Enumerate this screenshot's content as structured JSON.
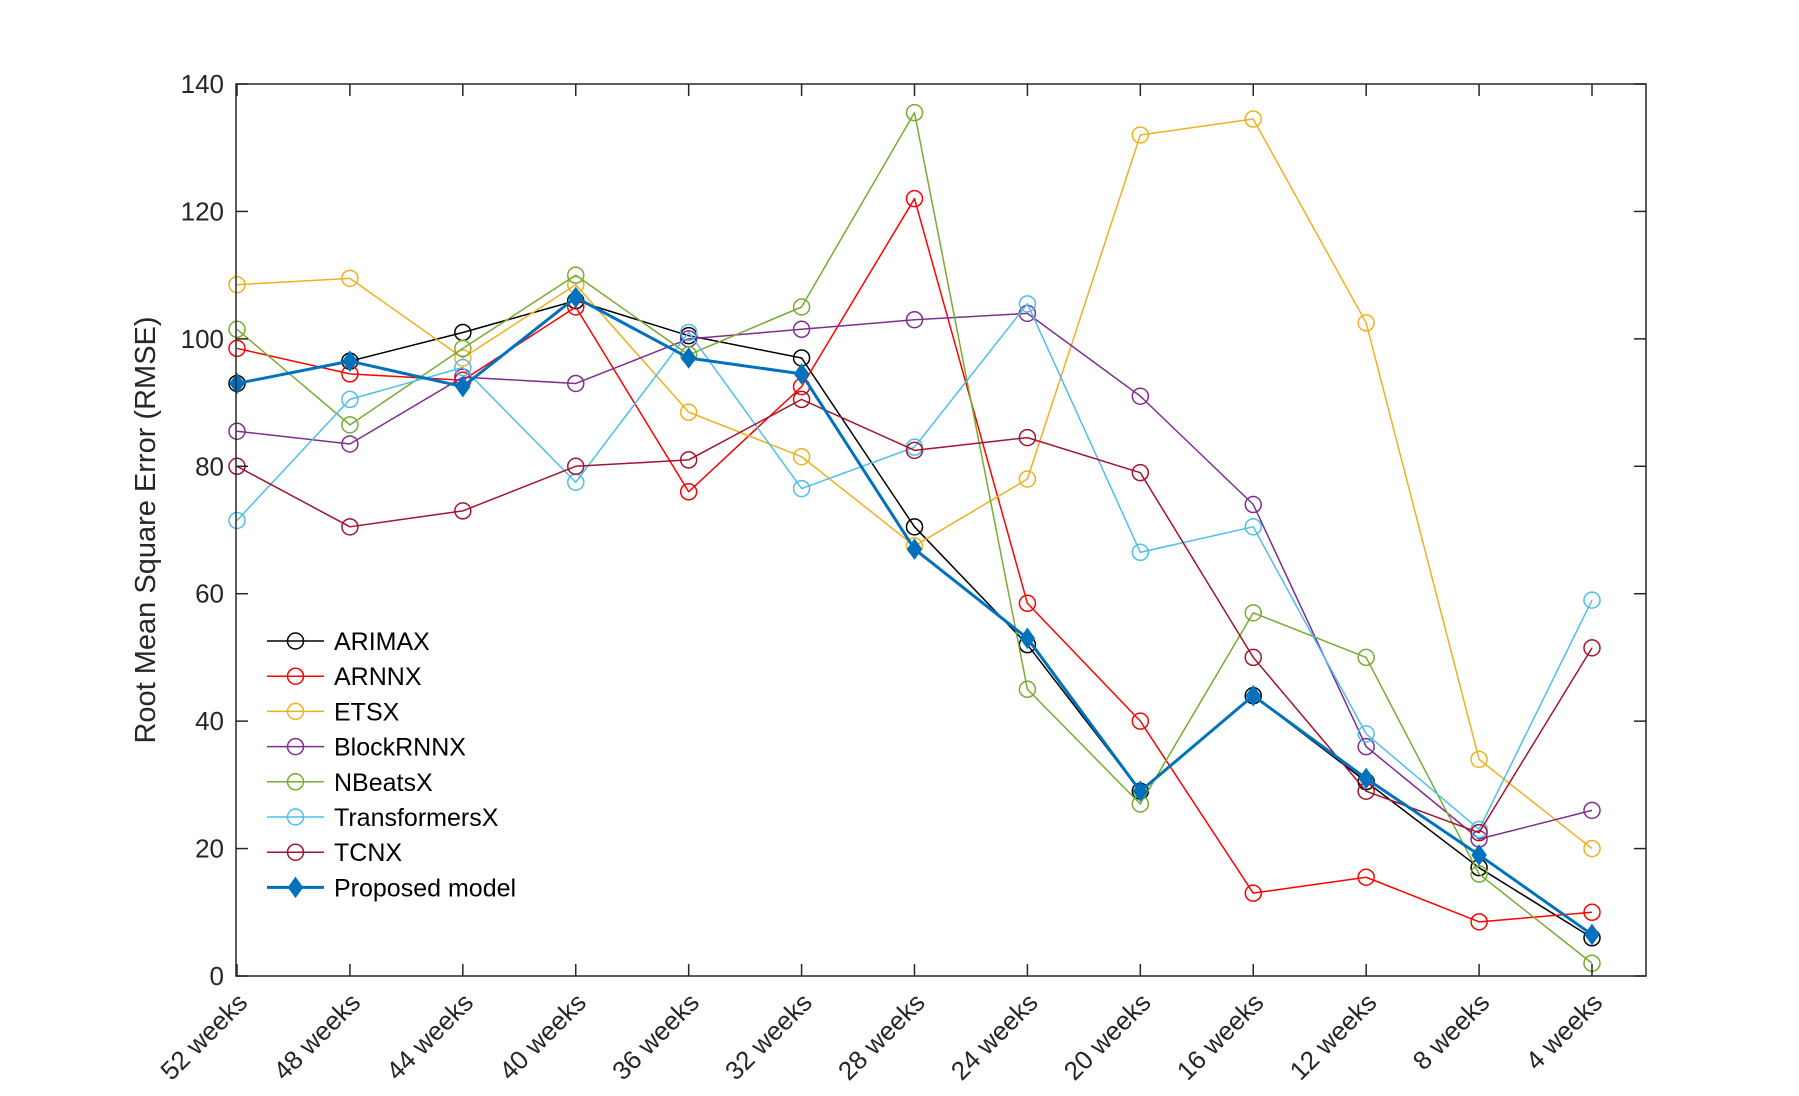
{
  "chart_data": {
    "type": "line",
    "title": "",
    "xlabel": "",
    "ylabel": "Root Mean Square Error (RMSE)",
    "ylim": [
      0,
      140
    ],
    "yticks": [
      0,
      20,
      40,
      60,
      80,
      100,
      120,
      140
    ],
    "categories": [
      "52 weeks",
      "48 weeks",
      "44 weeks",
      "40 weeks",
      "36 weeks",
      "32 weeks",
      "28 weeks",
      "24 weeks",
      "20 weeks",
      "16 weeks",
      "12 weeks",
      "8 weeks",
      "4 weeks"
    ],
    "grid": false,
    "legend_position": "bottom-left",
    "series": [
      {
        "name": "ARIMAX",
        "color": "#000000",
        "marker": "circle",
        "values": [
          93,
          96.5,
          101,
          106,
          100.5,
          97,
          70.5,
          52,
          29,
          44,
          30.5,
          17,
          6
        ]
      },
      {
        "name": "ARNNX",
        "color": "#ff0000",
        "marker": "circle",
        "values": [
          98.5,
          94.5,
          93.5,
          105,
          76,
          92.5,
          122,
          58.5,
          40,
          13,
          15.5,
          8.5,
          10
        ]
      },
      {
        "name": "ETSX",
        "color": "#edb120",
        "marker": "circle",
        "values": [
          108.5,
          109.5,
          97,
          108.5,
          88.5,
          81.5,
          67.5,
          78,
          132,
          134.5,
          102.5,
          34,
          20
        ]
      },
      {
        "name": "BlockRNNX",
        "color": "#7e2f8e",
        "marker": "circle",
        "values": [
          85.5,
          83.5,
          94,
          93,
          100,
          101.5,
          103,
          104,
          91,
          74,
          36,
          21.5,
          26
        ]
      },
      {
        "name": "NBeatsX",
        "color": "#77ac30",
        "marker": "circle",
        "values": [
          101.5,
          86.5,
          98.5,
          110,
          97.5,
          105,
          135.5,
          45,
          27,
          57,
          50,
          16,
          2
        ]
      },
      {
        "name": "TransformersX",
        "color": "#4dbeee",
        "marker": "circle",
        "values": [
          71.5,
          90.5,
          95.5,
          77.5,
          101,
          76.5,
          83,
          105.5,
          66.5,
          70.5,
          38,
          23,
          59
        ]
      },
      {
        "name": "TCNX",
        "color": "#a2142f",
        "marker": "circle",
        "values": [
          80,
          70.5,
          73,
          80,
          81,
          90.5,
          82.5,
          84.5,
          79,
          50,
          29,
          22.5,
          51.5
        ]
      },
      {
        "name": "Proposed model",
        "color": "#0072bd",
        "marker": "diamond",
        "values": [
          93,
          96.5,
          92.5,
          106.5,
          97,
          94.5,
          67,
          53,
          29,
          44,
          31,
          19,
          6.5
        ]
      }
    ]
  }
}
